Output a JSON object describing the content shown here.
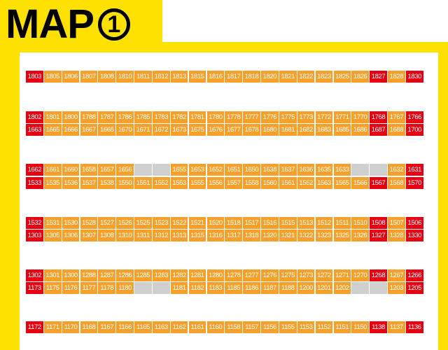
{
  "title": {
    "text": "MAP",
    "number": "1"
  },
  "colors": {
    "frame": "#ffe100",
    "orange": "#f5a02a",
    "red": "#e60012",
    "empty": "#cfcfcf"
  },
  "rows": [
    [
      "R1803",
      "1805",
      "1806",
      "1807",
      "1808",
      "1810",
      "1811",
      "1812",
      "1813",
      "1815",
      "1816",
      "1817",
      "1818",
      "1820",
      "1821",
      "1822",
      "1823",
      "1825",
      "1826",
      "R1827",
      "1828",
      "R1830"
    ],
    [
      "R1802",
      "1801",
      "1800",
      "1788",
      "1787",
      "1786",
      "1785",
      "1783",
      "1782",
      "1781",
      "1780",
      "1778",
      "1777",
      "1776",
      "1775",
      "1773",
      "1772",
      "1771",
      "1770",
      "R1768",
      "1767",
      "R1766"
    ],
    [
      "R1663",
      "1665",
      "1666",
      "1667",
      "1668",
      "1670",
      "1671",
      "1672",
      "1673",
      "1675",
      "1676",
      "1677",
      "1678",
      "1680",
      "1681",
      "1682",
      "1683",
      "1685",
      "1686",
      "R1687",
      "1688",
      "R1700"
    ],
    [
      "R1662",
      "1661",
      "1660",
      "1658",
      "1657",
      "1656",
      "",
      "",
      "1655",
      "1653",
      "1652",
      "1651",
      "1650",
      "1638",
      "1637",
      "1636",
      "1635",
      "1633",
      "",
      "",
      "1632",
      "R1631"
    ],
    [
      "R1533",
      "1535",
      "1536",
      "1537",
      "1538",
      "1550",
      "1551",
      "1552",
      "1553",
      "1555",
      "1556",
      "1557",
      "1558",
      "1560",
      "1561",
      "1562",
      "1563",
      "1565",
      "1566",
      "R1567",
      "1568",
      "R1570"
    ],
    [
      "R1532",
      "1531",
      "1530",
      "1528",
      "1527",
      "1526",
      "1525",
      "1523",
      "1522",
      "1521",
      "1520",
      "1518",
      "1517",
      "1516",
      "1515",
      "1513",
      "1512",
      "1511",
      "1510",
      "R1508",
      "1507",
      "R1506"
    ],
    [
      "R1303",
      "1305",
      "1306",
      "1307",
      "1308",
      "1310",
      "1311",
      "1312",
      "1313",
      "1315",
      "1316",
      "1317",
      "1318",
      "1320",
      "1321",
      "1322",
      "1323",
      "1325",
      "1326",
      "R1327",
      "1328",
      "R1330"
    ],
    [
      "R1302",
      "1301",
      "1300",
      "1288",
      "1287",
      "1286",
      "1285",
      "1283",
      "1282",
      "1281",
      "1280",
      "1278",
      "1277",
      "1276",
      "1275",
      "1273",
      "1272",
      "1271",
      "1270",
      "R1268",
      "1267",
      "R1266"
    ],
    [
      "R1173",
      "1175",
      "1176",
      "1177",
      "1178",
      "1180",
      "",
      "",
      "1181",
      "1182",
      "1183",
      "1185",
      "1186",
      "1187",
      "1188",
      "1200",
      "1201",
      "1202",
      "",
      "",
      "1203",
      "R1205"
    ],
    [
      "R1172",
      "1171",
      "1170",
      "1168",
      "1167",
      "1166",
      "1165",
      "1163",
      "1162",
      "1161",
      "1160",
      "1158",
      "1157",
      "1156",
      "1155",
      "1153",
      "1152",
      "1151",
      "1150",
      "R1138",
      "1137",
      "R1136"
    ]
  ]
}
